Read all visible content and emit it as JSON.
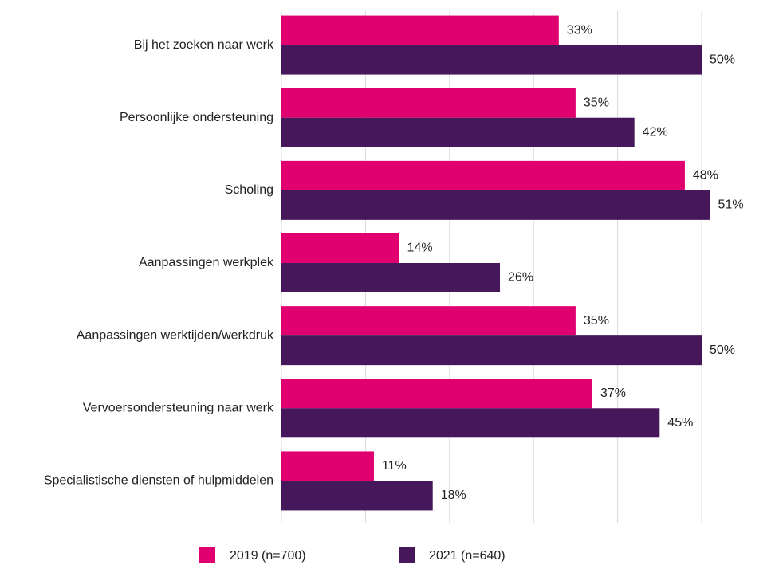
{
  "chart_data": {
    "type": "bar",
    "orientation": "horizontal",
    "categories": [
      "Bij het zoeken naar werk",
      "Persoonlijke ondersteuning",
      "Scholing",
      "Aanpassingen werkplek",
      "Aanpassingen werktijden/werkdruk",
      "Vervoersondersteuning naar werk",
      "Specialistische diensten of hulpmiddelen"
    ],
    "series": [
      {
        "name": "2019 (n=700)",
        "color": "#e0006f",
        "values": [
          33,
          35,
          48,
          14,
          35,
          37,
          11
        ],
        "value_labels": [
          "33%",
          "35%",
          "48%",
          "14%",
          "35%",
          "37%",
          "11%"
        ]
      },
      {
        "name": "2021 (n=640)",
        "color": "#46175a",
        "values": [
          50,
          42,
          51,
          26,
          50,
          45,
          18
        ],
        "value_labels": [
          "50%",
          "42%",
          "51%",
          "26%",
          "50%",
          "45%",
          "18%"
        ]
      }
    ],
    "xlim": [
      0,
      50
    ],
    "xticks": [
      0,
      10,
      20,
      30,
      40,
      50
    ],
    "grid": true,
    "legend": "bottom"
  }
}
